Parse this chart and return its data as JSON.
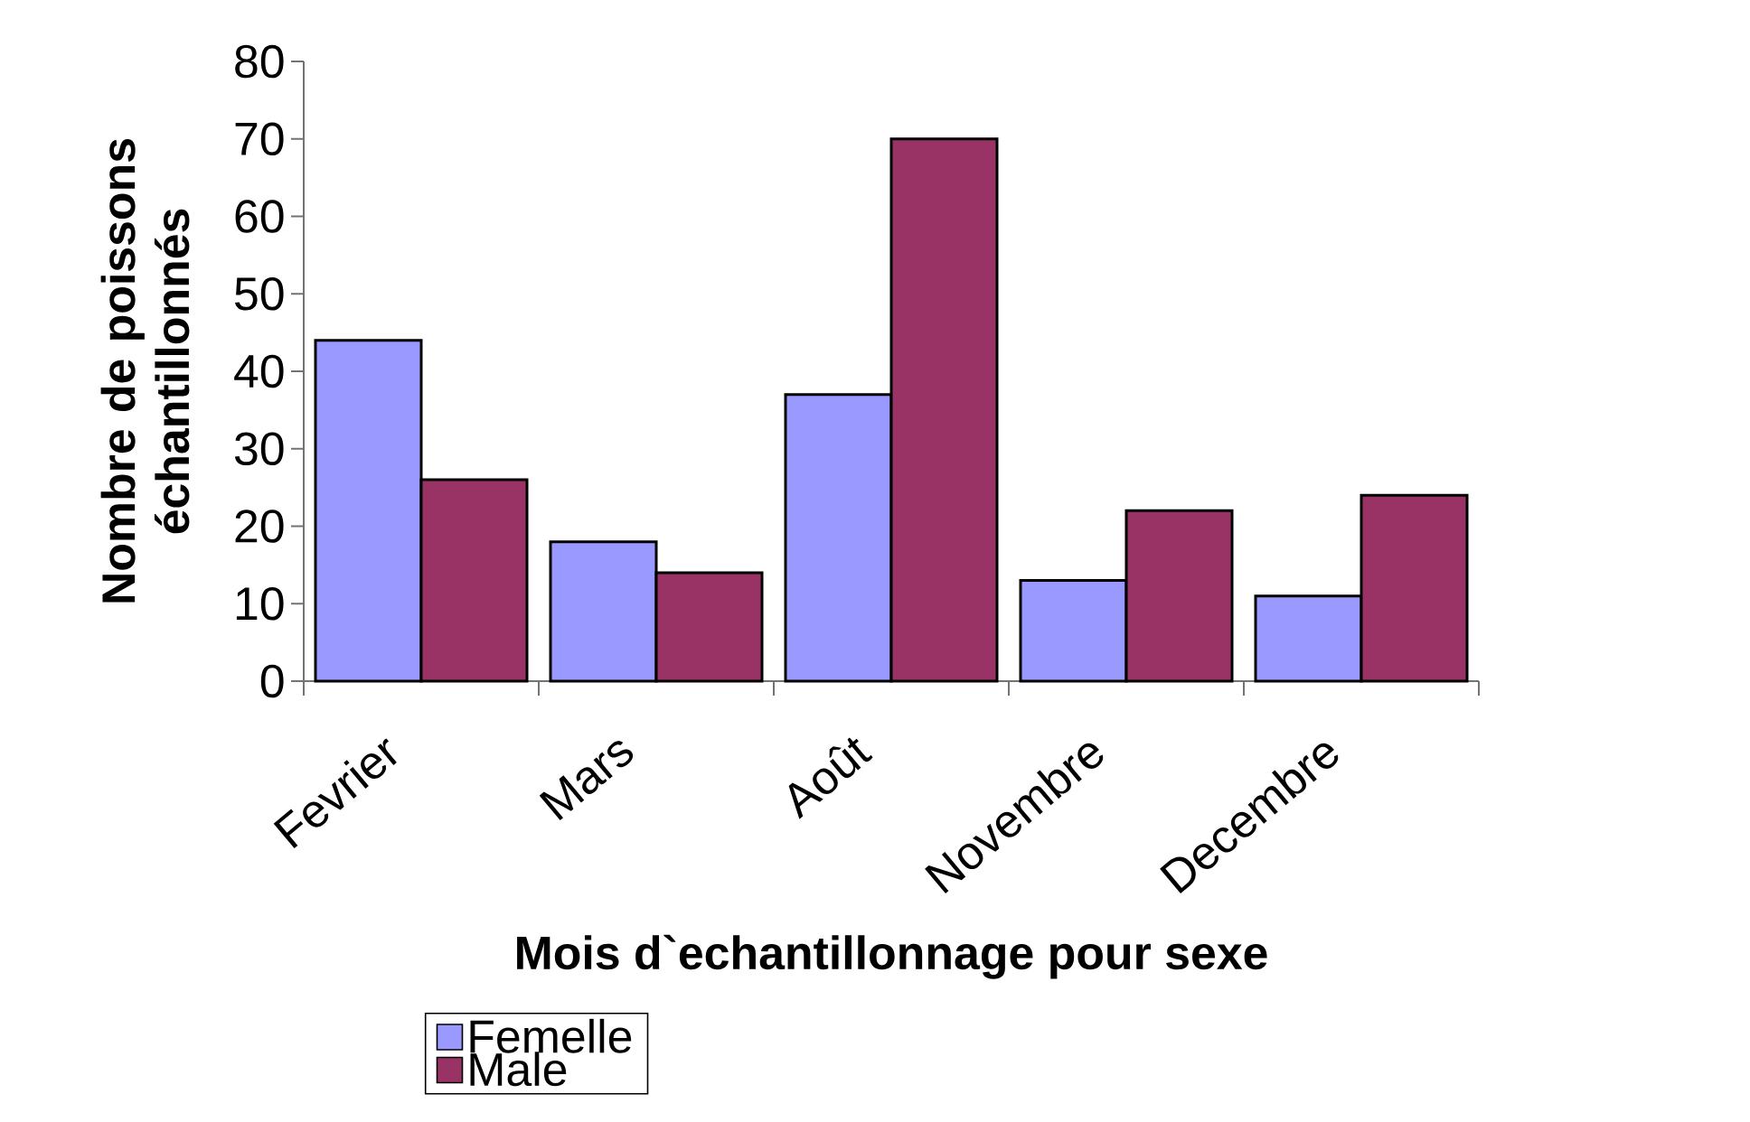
{
  "chart_data": {
    "type": "bar",
    "xlabel": "Mois d`echantillonnage pour sexe",
    "ylabel": "Nombre de poissons échantillonnés",
    "categories": [
      "Fevrier",
      "Mars",
      "Août",
      "Novembre",
      "Decembre"
    ],
    "series": [
      {
        "name": "Femelle",
        "color": "#9999ff",
        "values": [
          44,
          18,
          37,
          13,
          11
        ]
      },
      {
        "name": "Male",
        "color": "#993366",
        "values": [
          26,
          14,
          70,
          22,
          24
        ]
      }
    ],
    "ylim": [
      0,
      80
    ],
    "yticks": [
      0,
      10,
      20,
      30,
      40,
      50,
      60,
      70,
      80
    ],
    "legend": "bottom"
  }
}
